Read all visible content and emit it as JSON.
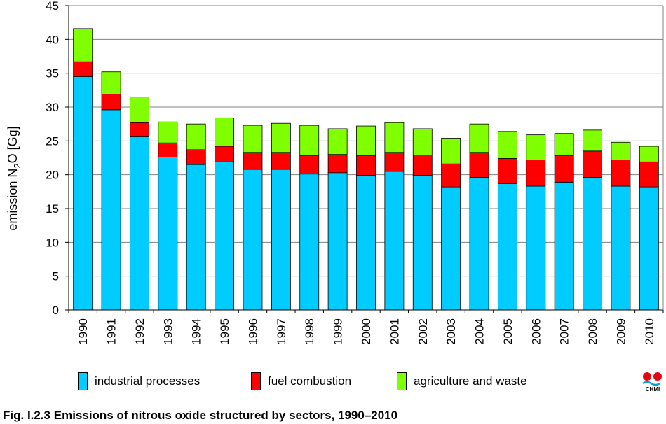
{
  "chart_data": {
    "type": "bar",
    "stacked": true,
    "categories": [
      "1990",
      "1991",
      "1992",
      "1993",
      "1994",
      "1995",
      "1996",
      "1997",
      "1998",
      "1999",
      "2000",
      "2001",
      "2002",
      "2003",
      "2004",
      "2005",
      "2006",
      "2007",
      "2008",
      "2009",
      "2010"
    ],
    "series": [
      {
        "name": "industrial processes",
        "color": "#00ccff",
        "values": [
          34.5,
          29.6,
          25.6,
          22.6,
          21.5,
          21.9,
          20.8,
          20.8,
          20.1,
          20.3,
          19.9,
          20.5,
          19.9,
          18.2,
          19.6,
          18.7,
          18.3,
          18.9,
          19.6,
          18.3,
          18.2
        ]
      },
      {
        "name": "fuel combustion",
        "color": "#ff0000",
        "values": [
          2.2,
          2.3,
          2.1,
          2.1,
          2.2,
          2.3,
          2.5,
          2.5,
          2.7,
          2.7,
          2.9,
          2.8,
          3.0,
          3.4,
          3.7,
          3.7,
          3.9,
          3.9,
          3.9,
          3.9,
          3.7
        ]
      },
      {
        "name": "agriculture and waste",
        "color": "#80ff00",
        "values": [
          4.9,
          3.3,
          3.8,
          3.1,
          3.8,
          4.2,
          4.0,
          4.3,
          4.5,
          3.8,
          4.4,
          4.4,
          3.9,
          3.8,
          4.2,
          4.0,
          3.7,
          3.3,
          3.1,
          2.6,
          2.3
        ]
      }
    ],
    "ylabel": "emission N2O [Gg]",
    "ylabel_main": "emission N",
    "ylabel_sub": "2",
    "ylabel_end": "O [Gg]",
    "ylim": [
      0,
      45
    ],
    "yticks": [
      0,
      5,
      10,
      15,
      20,
      25,
      30,
      35,
      40,
      45
    ],
    "grid": true,
    "legend_position": "bottom"
  },
  "caption": "Fig. I.2.3  Emissions of nitrous oxide structured by sectors, 1990–2010",
  "logo_text": "CHMI"
}
